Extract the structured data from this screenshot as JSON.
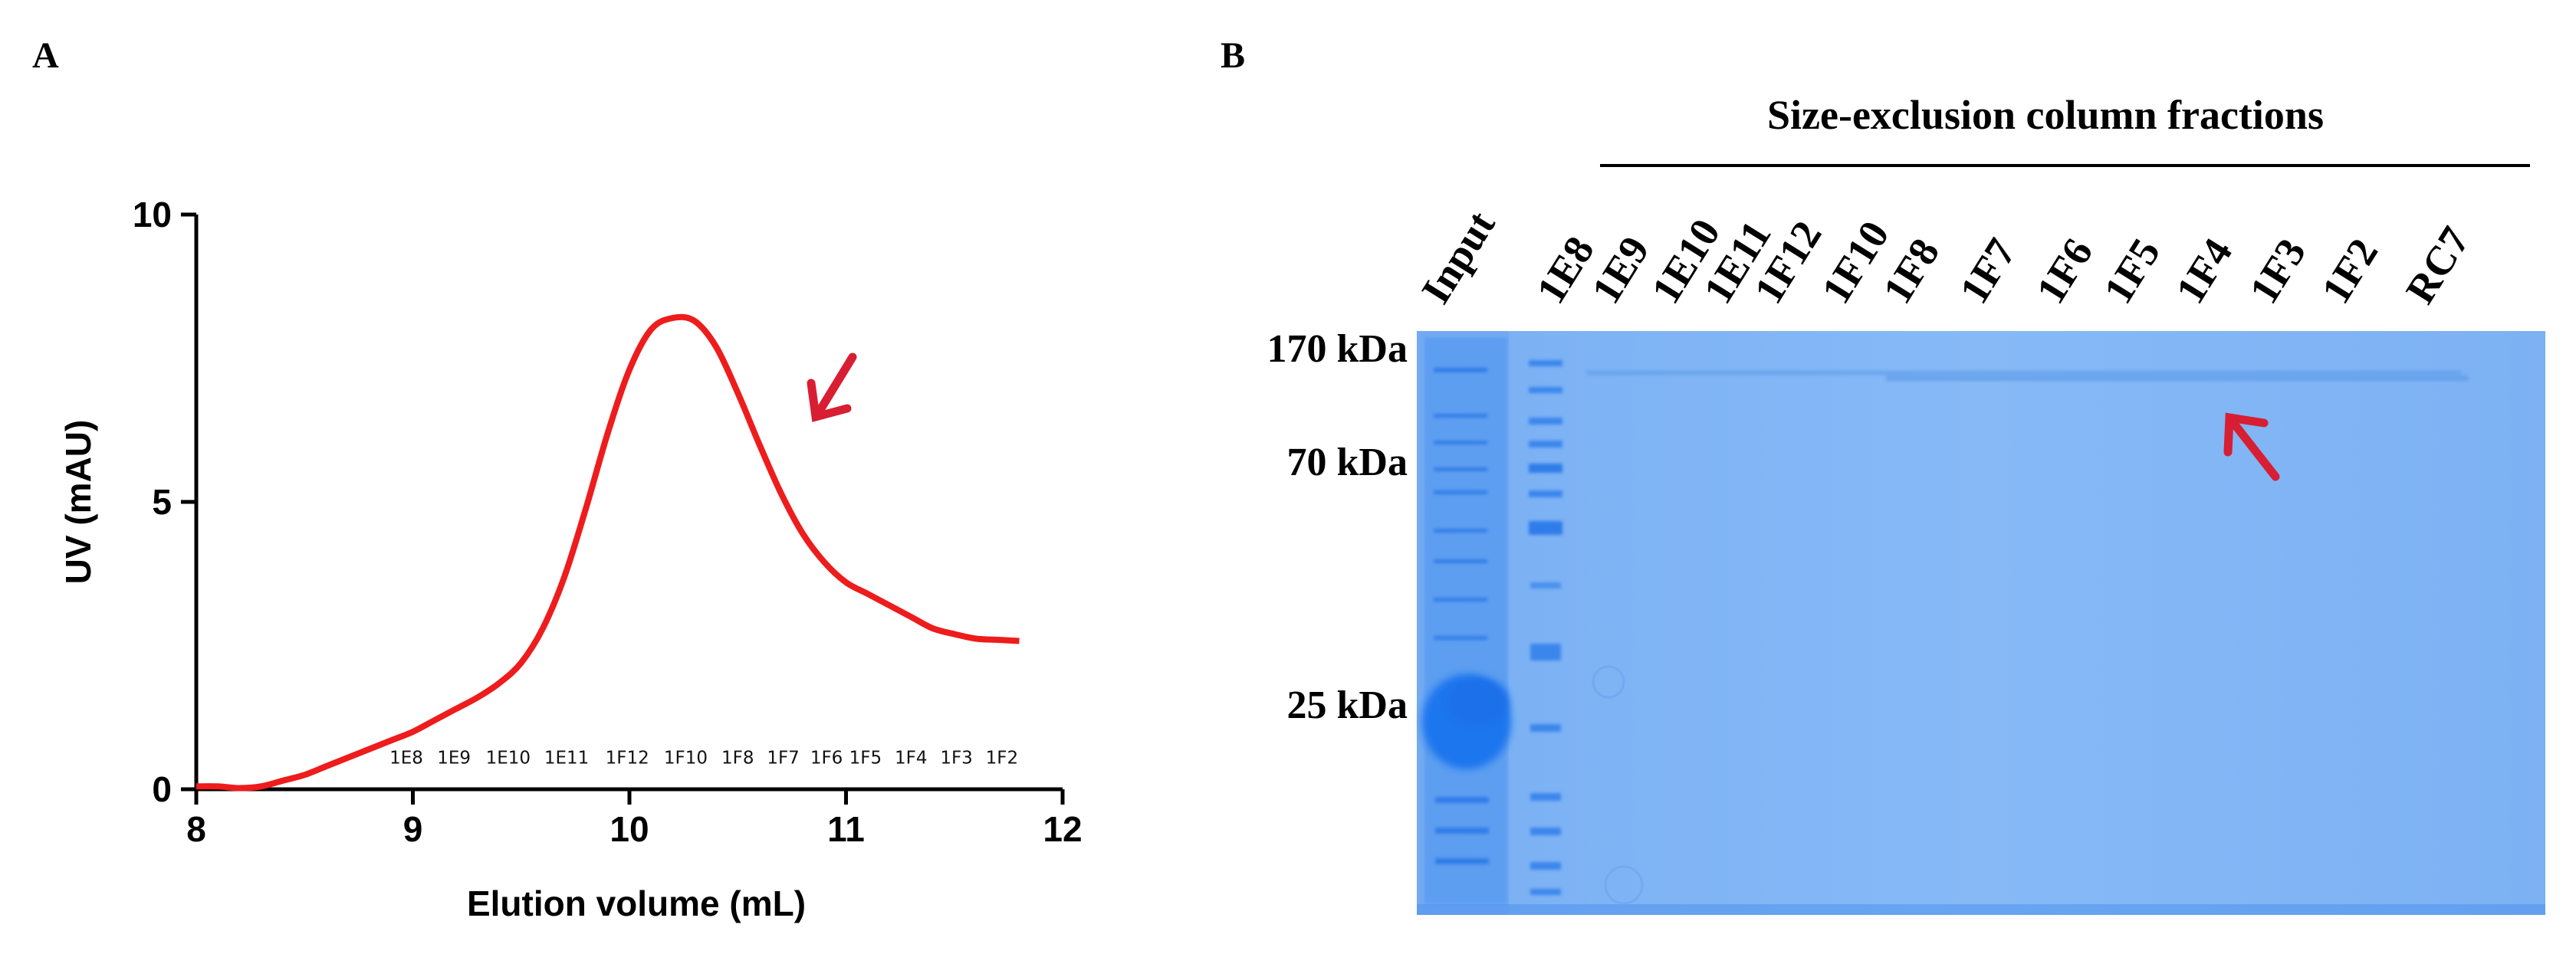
{
  "colors": {
    "curve": "#ee1c1c",
    "arrow": "#d81e32",
    "axis": "#000000",
    "gel_bg": "#7fb3f4",
    "gel_dark": "#2b7ff0",
    "band": "#5c9be8"
  },
  "panel_a": {
    "letter": "A"
  },
  "panel_b": {
    "letter": "B",
    "title": "Size-exclusion column fractions",
    "lanes": [
      "Input",
      "1E8",
      "1E9",
      "1E10",
      "1E11",
      "1F12",
      "1F10",
      "1F8",
      "1F7",
      "1F6",
      "1F5",
      "1F4",
      "1F3",
      "1F2",
      "RC7"
    ],
    "mw_markers": [
      "170 kDa",
      "70 kDa",
      "25 kDa"
    ]
  },
  "chart_data": {
    "type": "line",
    "title": "",
    "xlabel": "Elution volume (mL)",
    "ylabel": "UV (mAU)",
    "xlim": [
      8,
      12
    ],
    "ylim": [
      0,
      10
    ],
    "xticks": [
      8,
      9,
      10,
      11,
      12
    ],
    "yticks": [
      0,
      5,
      10
    ],
    "grid": false,
    "series": [
      {
        "x": [
          8.0,
          8.1,
          8.2,
          8.3,
          8.4,
          8.5,
          8.6,
          8.7,
          8.8,
          8.9,
          9.0,
          9.1,
          9.2,
          9.3,
          9.4,
          9.5,
          9.6,
          9.7,
          9.8,
          9.9,
          10.0,
          10.1,
          10.2,
          10.3,
          10.4,
          10.5,
          10.6,
          10.7,
          10.8,
          10.9,
          11.0,
          11.1,
          11.2,
          11.3,
          11.4,
          11.5,
          11.6,
          11.7,
          11.8
        ],
        "y": [
          0.05,
          0.05,
          0.02,
          0.05,
          0.15,
          0.25,
          0.4,
          0.55,
          0.7,
          0.85,
          1.0,
          1.2,
          1.4,
          1.6,
          1.85,
          2.2,
          2.8,
          3.7,
          4.9,
          6.2,
          7.3,
          8.0,
          8.2,
          8.15,
          7.7,
          6.9,
          6.0,
          5.15,
          4.45,
          3.95,
          3.6,
          3.4,
          3.2,
          3.0,
          2.8,
          2.7,
          2.62,
          2.6,
          2.58
        ]
      }
    ],
    "fraction_labels": [
      {
        "x": 8.97,
        "label": "1E8"
      },
      {
        "x": 9.19,
        "label": "1E9"
      },
      {
        "x": 9.44,
        "label": "1E10"
      },
      {
        "x": 9.71,
        "label": "1E11"
      },
      {
        "x": 9.99,
        "label": "1F12"
      },
      {
        "x": 10.26,
        "label": "1F10"
      },
      {
        "x": 10.5,
        "label": "1F8"
      },
      {
        "x": 10.71,
        "label": "1F7"
      },
      {
        "x": 10.91,
        "label": "1F6"
      },
      {
        "x": 11.09,
        "label": "1F5"
      },
      {
        "x": 11.3,
        "label": "1F4"
      },
      {
        "x": 11.51,
        "label": "1F3"
      },
      {
        "x": 11.72,
        "label": "1F2"
      }
    ],
    "fraction_label_y": 0.45
  }
}
